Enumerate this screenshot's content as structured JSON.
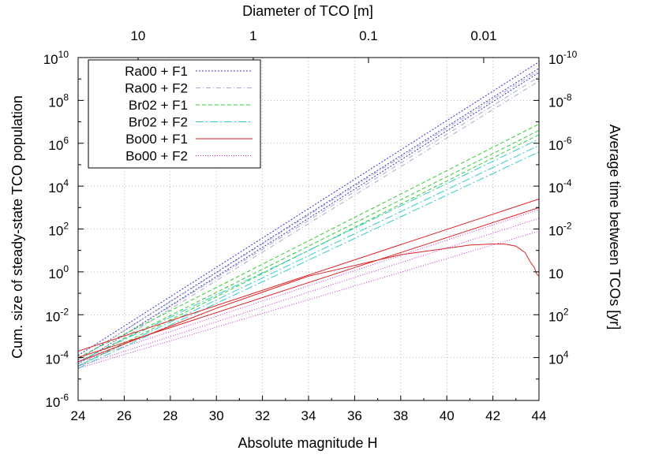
{
  "chart_data": {
    "type": "line",
    "xlabel": "Absolute magnitude H",
    "ylabel": "Cum. size of steady-state TCO population",
    "x2label": "Diameter of TCO [m]",
    "y2label": "Average time between TCOs [yr]",
    "xlim": [
      24,
      44
    ],
    "ylim": [
      1e-06,
      10000000000.0
    ],
    "yscale": "log",
    "grid": true,
    "legend_position": "top-left",
    "x_ticks": [
      "24",
      "26",
      "28",
      "30",
      "32",
      "34",
      "36",
      "38",
      "40",
      "42",
      "44"
    ],
    "y_ticks": [
      {
        "base": "10",
        "exp": "10"
      },
      {
        "base": "10",
        "exp": "8"
      },
      {
        "base": "10",
        "exp": "6"
      },
      {
        "base": "10",
        "exp": "4"
      },
      {
        "base": "10",
        "exp": "2"
      },
      {
        "base": "10",
        "exp": "0"
      },
      {
        "base": "10",
        "exp": "-2"
      },
      {
        "base": "10",
        "exp": "-4"
      },
      {
        "base": "10",
        "exp": "-6"
      }
    ],
    "x2_ticks": [
      {
        "label": "10",
        "h": 26.6
      },
      {
        "label": "1",
        "h": 31.6
      },
      {
        "label": "0.1",
        "h": 36.6
      },
      {
        "label": "0.01",
        "h": 41.6
      }
    ],
    "y2_ticks": [
      {
        "base": "10",
        "exp": "-10",
        "logy": 10
      },
      {
        "base": "10",
        "exp": "-8",
        "logy": 8
      },
      {
        "base": "10",
        "exp": "-6",
        "logy": 6
      },
      {
        "base": "10",
        "exp": "-4",
        "logy": 4
      },
      {
        "base": "10",
        "exp": "-2",
        "logy": 2
      },
      {
        "base": "10",
        "exp": "",
        "logy": 0,
        "text": "10"
      },
      {
        "base": "10",
        "exp": "2",
        "logy": -2
      },
      {
        "base": "10",
        "exp": "4",
        "logy": -4
      }
    ],
    "series": [
      {
        "name": "Ra00 + F1",
        "color": "#3333cc",
        "dash": "2,2",
        "lines": [
          {
            "x": [
              24,
              44
            ],
            "log_y": [
              -3.9,
              9.8
            ]
          },
          {
            "x": [
              24,
              44
            ],
            "log_y": [
              -4.1,
              9.5
            ]
          },
          {
            "x": [
              24,
              44
            ],
            "log_y": [
              -4.3,
              9.3
            ]
          }
        ]
      },
      {
        "name": "Ra00 + F2",
        "color": "#aaaacc",
        "dash": "6,3,1,3",
        "lines": [
          {
            "x": [
              24,
              44
            ],
            "log_y": [
              -4.1,
              9.4
            ]
          },
          {
            "x": [
              24,
              44
            ],
            "log_y": [
              -4.3,
              9.1
            ]
          },
          {
            "x": [
              24,
              44
            ],
            "log_y": [
              -4.4,
              8.9
            ]
          }
        ]
      },
      {
        "name": "Br02 + F1",
        "color": "#33cc33",
        "dash": "5,3",
        "lines": [
          {
            "x": [
              24,
              44
            ],
            "log_y": [
              -4.0,
              6.9
            ]
          },
          {
            "x": [
              24,
              44
            ],
            "log_y": [
              -4.2,
              6.6
            ]
          },
          {
            "x": [
              24,
              44
            ],
            "log_y": [
              -4.4,
              6.4
            ]
          }
        ]
      },
      {
        "name": "Br02 + F2",
        "color": "#33cccc",
        "dash": "10,3,2,3",
        "lines": [
          {
            "x": [
              24,
              44
            ],
            "log_y": [
              -4.2,
              6.2
            ]
          },
          {
            "x": [
              24,
              44
            ],
            "log_y": [
              -4.4,
              5.9
            ]
          },
          {
            "x": [
              24,
              44
            ],
            "log_y": [
              -4.5,
              5.6
            ]
          }
        ]
      },
      {
        "name": "Bo00 + F1",
        "color": "#dd2222",
        "dash": "",
        "lines": [
          {
            "x": [
              24,
              44
            ],
            "log_y": [
              -3.7,
              3.4
            ]
          },
          {
            "x": [
              24,
              44
            ],
            "log_y": [
              -4.0,
              3.0
            ]
          },
          {
            "x": [
              24,
              30,
              34,
              38,
              40,
              41,
              42,
              42.5,
              43,
              43.4,
              43.6,
              43.8,
              43.9,
              44
            ],
            "log_y": [
              -4.2,
              -1.7,
              -0.2,
              0.8,
              1.1,
              1.25,
              1.3,
              1.3,
              1.2,
              0.9,
              0.5,
              0.2,
              -0.1,
              -0.2
            ]
          }
        ]
      },
      {
        "name": "Bo00 + F2",
        "color": "#cc33cc",
        "dash": "1,2",
        "lines": [
          {
            "x": [
              24,
              44
            ],
            "log_y": [
              -4.2,
              2.9
            ]
          },
          {
            "x": [
              24,
              44
            ],
            "log_y": [
              -4.4,
              2.5
            ]
          },
          {
            "x": [
              24,
              44
            ],
            "log_y": [
              -4.5,
              1.9
            ]
          }
        ]
      }
    ]
  }
}
